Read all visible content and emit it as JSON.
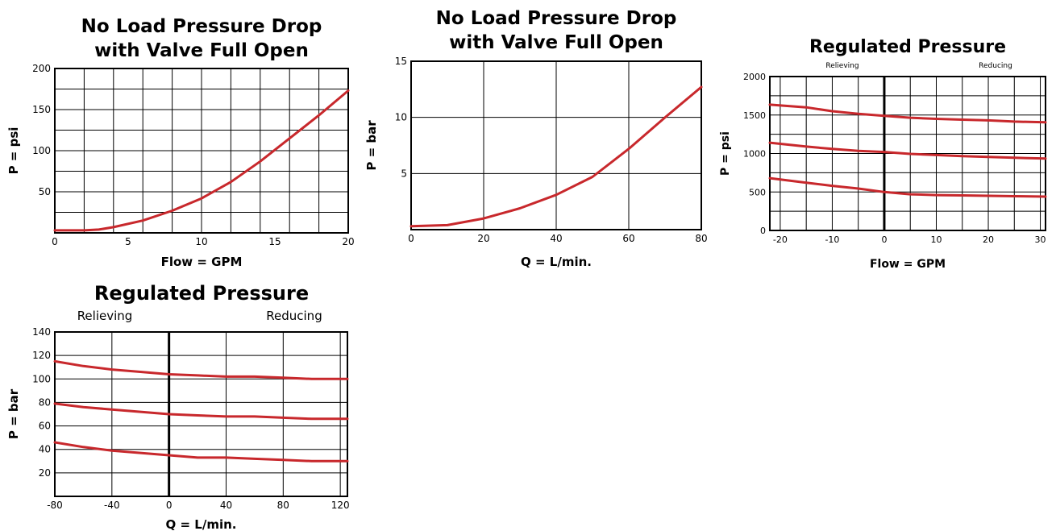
{
  "colors": {
    "curve": "#c8282c",
    "grid": "#000000",
    "background": "#ffffff"
  },
  "chart_data": [
    {
      "type": "line",
      "title": [
        "No Load Pressure Drop",
        "with Valve Full Open"
      ],
      "xlabel": "Flow = GPM",
      "ylabel": "P = psi",
      "xlim": [
        0,
        20
      ],
      "ylim": [
        0,
        200
      ],
      "xticks": [
        0,
        5,
        10,
        15,
        20
      ],
      "yticks": [
        50,
        100,
        150,
        200
      ],
      "xgrid_step": 2,
      "ygrid_step": 25,
      "grid": true,
      "series": [
        {
          "x": [
            0,
            2,
            3,
            4,
            6,
            8,
            10,
            12,
            14,
            16,
            18,
            20
          ],
          "y": [
            3,
            3,
            4,
            7,
            15,
            27,
            42,
            62,
            87,
            115,
            143,
            173
          ]
        }
      ]
    },
    {
      "type": "line",
      "title": [
        "No Load Pressure Drop",
        "with Valve Full Open"
      ],
      "xlabel": "Q = L/min.",
      "ylabel": "P = bar",
      "xlim": [
        0,
        80
      ],
      "ylim": [
        0,
        15
      ],
      "xticks": [
        0,
        20,
        40,
        60,
        80
      ],
      "yticks": [
        5,
        10,
        15
      ],
      "xgrid_step": 20,
      "ygrid_step": 5,
      "grid": true,
      "series": [
        {
          "x": [
            0,
            10,
            20,
            30,
            40,
            50,
            60,
            70,
            80
          ],
          "y": [
            0.3,
            0.4,
            1.0,
            1.9,
            3.1,
            4.7,
            7.2,
            10.0,
            12.7
          ]
        }
      ]
    },
    {
      "type": "line",
      "title": [
        "Regulated Pressure"
      ],
      "subtitle_left": "Relieving",
      "subtitle_right": "Reducing",
      "xlabel": "Flow  =  GPM",
      "ylabel": "P = psi",
      "xlim": [
        -22,
        31
      ],
      "ylim": [
        0,
        2000
      ],
      "xticks": [
        -20,
        -10,
        0,
        10,
        20,
        30
      ],
      "yticks": [
        0,
        500,
        1000,
        1500,
        2000
      ],
      "xgrid_step": 5,
      "ygrid_step": 250,
      "grid": true,
      "zero_line": 0,
      "series": [
        {
          "x": [
            -22,
            -15,
            -10,
            -5,
            0,
            5,
            10,
            15,
            20,
            25,
            31
          ],
          "y": [
            1635,
            1600,
            1550,
            1515,
            1490,
            1465,
            1450,
            1440,
            1430,
            1415,
            1405
          ]
        },
        {
          "x": [
            -22,
            -15,
            -10,
            -5,
            0,
            5,
            10,
            15,
            20,
            25,
            31
          ],
          "y": [
            1140,
            1090,
            1060,
            1035,
            1020,
            995,
            980,
            965,
            955,
            945,
            935
          ]
        },
        {
          "x": [
            -22,
            -15,
            -10,
            -5,
            0,
            5,
            10,
            15,
            20,
            25,
            31
          ],
          "y": [
            680,
            620,
            580,
            545,
            500,
            470,
            460,
            455,
            450,
            445,
            440
          ]
        }
      ]
    },
    {
      "type": "line",
      "title": [
        "Regulated Pressure"
      ],
      "subtitle_left": "Relieving",
      "subtitle_right": "Reducing",
      "xlabel": "Q = L/min.",
      "ylabel": "P = bar",
      "xlim": [
        -80,
        125
      ],
      "ylim": [
        0,
        140
      ],
      "xticks": [
        -80,
        -40,
        0,
        40,
        80,
        120
      ],
      "yticks": [
        20,
        40,
        60,
        80,
        100,
        120,
        140
      ],
      "xgrid_step": 40,
      "ygrid_step": 20,
      "grid": true,
      "zero_line": 0,
      "series": [
        {
          "x": [
            -80,
            -60,
            -40,
            -20,
            0,
            20,
            40,
            60,
            80,
            100,
            125
          ],
          "y": [
            115,
            111,
            108,
            106,
            104,
            103,
            102,
            102,
            101,
            100,
            100
          ]
        },
        {
          "x": [
            -80,
            -60,
            -40,
            -20,
            0,
            20,
            40,
            60,
            80,
            100,
            125
          ],
          "y": [
            79,
            76,
            74,
            72,
            70,
            69,
            68,
            68,
            67,
            66,
            66
          ]
        },
        {
          "x": [
            -80,
            -60,
            -40,
            -20,
            0,
            20,
            40,
            60,
            80,
            100,
            125
          ],
          "y": [
            46,
            42,
            39,
            37,
            35,
            33,
            33,
            32,
            31,
            30,
            30
          ]
        }
      ]
    }
  ]
}
